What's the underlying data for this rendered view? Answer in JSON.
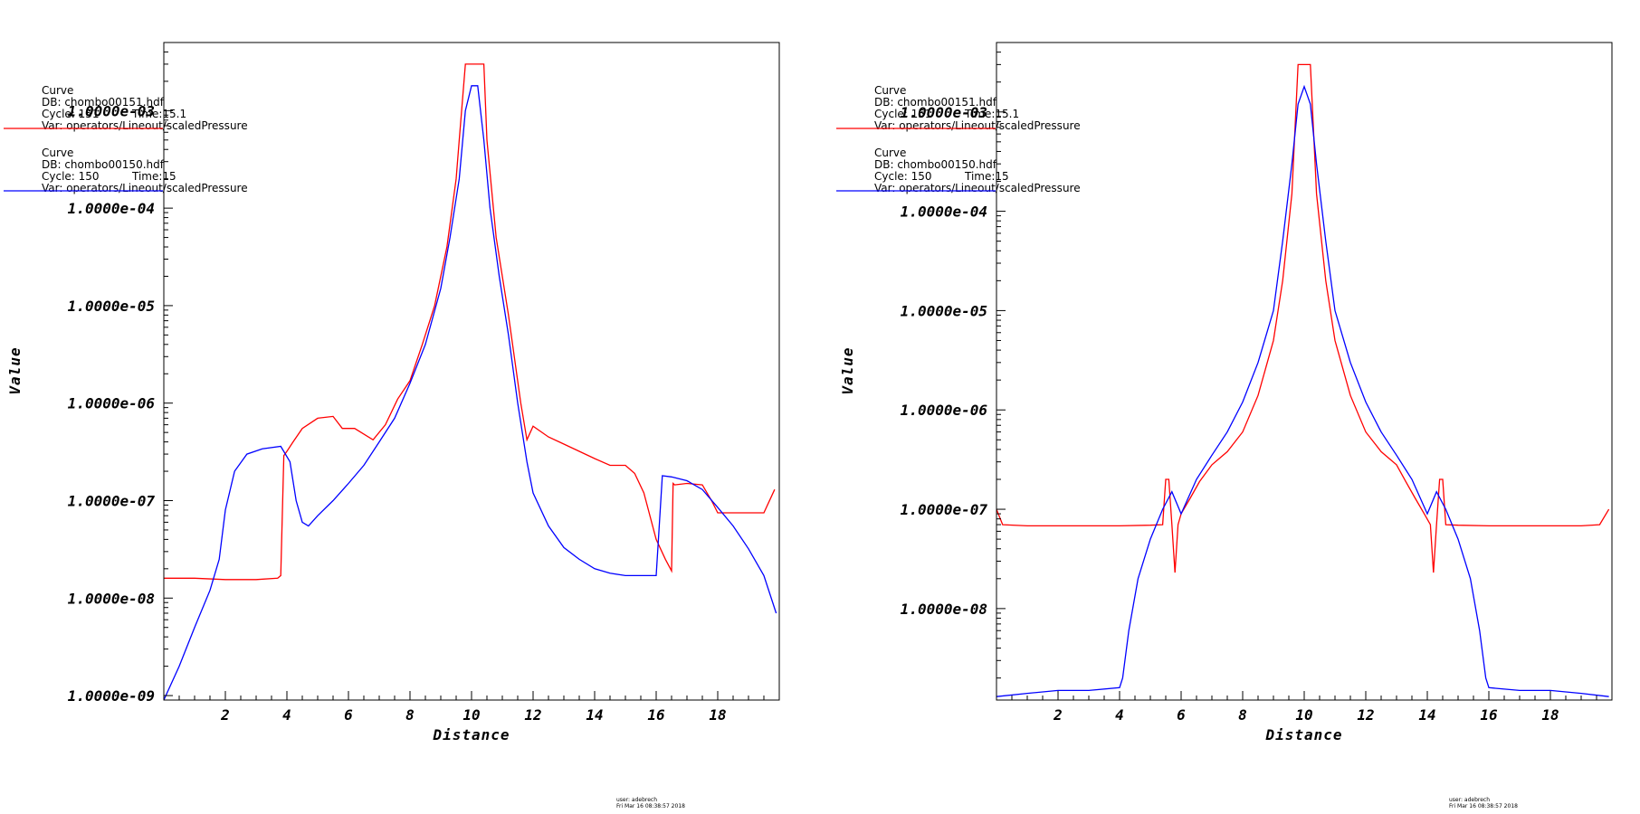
{
  "colors": {
    "red": "#ff0000",
    "blue": "#0000ff",
    "axis": "#000000",
    "background": "#ffffff"
  },
  "chart_data": [
    {
      "type": "line",
      "xlabel": "Distance",
      "ylabel": "Value",
      "yscale": "log",
      "xlim": [
        0,
        20
      ],
      "ylim": [
        9e-10,
        0.005
      ],
      "xticks": [
        {
          "value": 2,
          "label": "2"
        },
        {
          "value": 4,
          "label": "4"
        },
        {
          "value": 6,
          "label": "6"
        },
        {
          "value": 8,
          "label": "8"
        },
        {
          "value": 10,
          "label": "10"
        },
        {
          "value": 12,
          "label": "12"
        },
        {
          "value": 14,
          "label": "14"
        },
        {
          "value": 16,
          "label": "16"
        },
        {
          "value": 18,
          "label": "18"
        }
      ],
      "yticks": [
        {
          "value": 0.001,
          "label": "1.0000e-03"
        },
        {
          "value": 0.0001,
          "label": "1.0000e-04"
        },
        {
          "value": 1e-05,
          "label": "1.0000e-05"
        },
        {
          "value": 1e-06,
          "label": "1.0000e-06"
        },
        {
          "value": 1e-07,
          "label": "1.0000e-07"
        },
        {
          "value": 1e-08,
          "label": "1.0000e-08"
        },
        {
          "value": 1e-09,
          "label": "1.0000e-09"
        }
      ],
      "series": [
        {
          "name": "Curve",
          "db": "DB: chombo00151.hdf",
          "cycle": "Cycle: 151",
          "time": "Time:15.1",
          "var": "Var: operators/Lineout/scaledPressure",
          "color": "#ff0000",
          "x": [
            0,
            1,
            2,
            3,
            3.7,
            3.8,
            3.9,
            4.0,
            4.2,
            4.5,
            5.0,
            5.5,
            5.8,
            6.2,
            6.8,
            7.2,
            7.6,
            8.0,
            8.4,
            8.8,
            9.2,
            9.5,
            9.6,
            9.8,
            10.0,
            10.2,
            10.4,
            10.5,
            10.8,
            11.2,
            11.6,
            11.8,
            12.0,
            12.5,
            13.0,
            13.5,
            14.0,
            14.5,
            15.0,
            15.3,
            15.6,
            16.0,
            16.3,
            16.5,
            16.55,
            16.6,
            17.0,
            17.5,
            17.8,
            18.0,
            18.5,
            19.0,
            19.5,
            19.85
          ],
          "y": [
            1.6e-08,
            1.6e-08,
            1.55e-08,
            1.55e-08,
            1.6e-08,
            1.7e-08,
            2.9e-07,
            3.2e-07,
            4e-07,
            5.5e-07,
            7e-07,
            7.3e-07,
            5.5e-07,
            5.5e-07,
            4.2e-07,
            6e-07,
            1.1e-06,
            1.7e-06,
            4e-06,
            1e-05,
            4e-05,
            0.0002,
            0.0005,
            0.003,
            0.003,
            0.003,
            0.003,
            0.0005,
            5e-05,
            8e-06,
            1e-06,
            4.2e-07,
            5.8e-07,
            4.5e-07,
            3.8e-07,
            3.2e-07,
            2.7e-07,
            2.3e-07,
            2.3e-07,
            1.9e-07,
            1.2e-07,
            4e-08,
            2.5e-08,
            1.9e-08,
            1.5e-07,
            1.45e-07,
            1.5e-07,
            1.45e-07,
            1e-07,
            7.5e-08,
            7.5e-08,
            7.5e-08,
            7.5e-08,
            1.3e-07
          ]
        },
        {
          "name": "Curve",
          "db": "DB: chombo00150.hdf",
          "cycle": "Cycle: 150",
          "time": "Time:15",
          "var": "Var: operators/Lineout/scaledPressure",
          "color": "#0000ff",
          "x": [
            0,
            0.5,
            1.0,
            1.5,
            1.8,
            2.0,
            2.3,
            2.7,
            3.2,
            3.8,
            4.1,
            4.3,
            4.5,
            4.7,
            5.0,
            5.5,
            6.0,
            6.5,
            7.0,
            7.5,
            8.0,
            8.5,
            9.0,
            9.3,
            9.6,
            9.8,
            10.0,
            10.2,
            10.4,
            10.6,
            10.9,
            11.2,
            11.5,
            11.8,
            12.0,
            12.5,
            13.0,
            13.5,
            14.0,
            14.5,
            15.0,
            15.5,
            16.0,
            16.2,
            16.5,
            17.0,
            17.5,
            18.0,
            18.5,
            19.0,
            19.5,
            19.9
          ],
          "y": [
            9e-10,
            2e-09,
            5e-09,
            1.2e-08,
            2.5e-08,
            8e-08,
            2e-07,
            3e-07,
            3.4e-07,
            3.6e-07,
            2.5e-07,
            1e-07,
            6e-08,
            5.5e-08,
            7e-08,
            1e-07,
            1.5e-07,
            2.3e-07,
            4e-07,
            7e-07,
            1.6e-06,
            4e-06,
            1.5e-05,
            5e-05,
            0.0002,
            0.001,
            0.0018,
            0.0018,
            0.0005,
            0.0001,
            2e-05,
            5e-06,
            1e-06,
            2.5e-07,
            1.2e-07,
            5.5e-08,
            3.3e-08,
            2.5e-08,
            2e-08,
            1.8e-08,
            1.7e-08,
            1.7e-08,
            1.7e-08,
            1.8e-07,
            1.75e-07,
            1.6e-07,
            1.3e-07,
            8.5e-08,
            5.5e-08,
            3.2e-08,
            1.7e-08,
            7e-09
          ]
        }
      ]
    },
    {
      "type": "line",
      "xlabel": "Distance",
      "ylabel": "Value",
      "yscale": "log",
      "xlim": [
        0,
        20
      ],
      "ylim": [
        1.2e-09,
        0.005
      ],
      "xticks": [
        {
          "value": 2,
          "label": "2"
        },
        {
          "value": 4,
          "label": "4"
        },
        {
          "value": 6,
          "label": "6"
        },
        {
          "value": 8,
          "label": "8"
        },
        {
          "value": 10,
          "label": "10"
        },
        {
          "value": 12,
          "label": "12"
        },
        {
          "value": 14,
          "label": "14"
        },
        {
          "value": 16,
          "label": "16"
        },
        {
          "value": 18,
          "label": "18"
        }
      ],
      "yticks": [
        {
          "value": 0.001,
          "label": "1.0000e-03"
        },
        {
          "value": 0.0001,
          "label": "1.0000e-04"
        },
        {
          "value": 1e-05,
          "label": "1.0000e-05"
        },
        {
          "value": 1e-06,
          "label": "1.0000e-06"
        },
        {
          "value": 1e-07,
          "label": "1.0000e-07"
        },
        {
          "value": 1e-08,
          "label": "1.0000e-08"
        }
      ],
      "series": [
        {
          "name": "Curve",
          "db": "DB: chombo00151.hdf",
          "cycle": "Cycle: 151",
          "time": "Time:15.1",
          "var": "Var: operators/Lineout/scaledPressure",
          "color": "#ff0000",
          "x": [
            0,
            0.2,
            1,
            2,
            3,
            4,
            5,
            5.4,
            5.5,
            5.6,
            5.7,
            5.8,
            5.9,
            6.0,
            6.3,
            6.6,
            7.0,
            7.5,
            8.0,
            8.5,
            9.0,
            9.3,
            9.6,
            9.8,
            10.0,
            10.2,
            10.4,
            10.7,
            11.0,
            11.5,
            12.0,
            12.5,
            13.0,
            13.3,
            13.6,
            13.9,
            14.1,
            14.2,
            14.3,
            14.4,
            14.5,
            14.6,
            15.0,
            16.0,
            17.0,
            18.0,
            19.0,
            19.6,
            19.9
          ],
          "y": [
            1e-07,
            7e-08,
            6.8e-08,
            6.8e-08,
            6.8e-08,
            6.8e-08,
            6.9e-08,
            7e-08,
            2e-07,
            2e-07,
            7e-08,
            2.3e-08,
            7e-08,
            9e-08,
            1.3e-07,
            1.9e-07,
            2.8e-07,
            3.8e-07,
            6e-07,
            1.4e-06,
            5e-06,
            2e-05,
            0.00015,
            0.003,
            0.003,
            0.003,
            0.00015,
            2e-05,
            5e-06,
            1.4e-06,
            6e-07,
            3.8e-07,
            2.8e-07,
            1.9e-07,
            1.3e-07,
            9e-08,
            7e-08,
            2.3e-08,
            7e-08,
            2e-07,
            2e-07,
            7e-08,
            6.9e-08,
            6.8e-08,
            6.8e-08,
            6.8e-08,
            6.8e-08,
            7e-08,
            1e-07
          ]
        },
        {
          "name": "Curve",
          "db": "DB: chombo00150.hdf",
          "cycle": "Cycle: 150",
          "time": "Time:15",
          "var": "Var: operators/Lineout/scaledPressure",
          "color": "#0000ff",
          "x": [
            0,
            1,
            2,
            3,
            4.0,
            4.1,
            4.3,
            4.6,
            5.0,
            5.4,
            5.7,
            6.0,
            6.5,
            7.0,
            7.5,
            8.0,
            8.5,
            9.0,
            9.3,
            9.6,
            9.8,
            10.0,
            10.2,
            10.4,
            10.7,
            11.0,
            11.5,
            12.0,
            12.5,
            13.0,
            13.5,
            14.0,
            14.3,
            14.6,
            15.0,
            15.4,
            15.7,
            15.9,
            16.0,
            17,
            18,
            19,
            19.9
          ],
          "y": [
            1.3e-09,
            1.4e-09,
            1.5e-09,
            1.5e-09,
            1.6e-09,
            2e-09,
            6e-09,
            2e-08,
            5e-08,
            1e-07,
            1.5e-07,
            9e-08,
            2e-07,
            3.5e-07,
            6e-07,
            1.2e-06,
            3e-06,
            1e-05,
            5e-05,
            0.0003,
            0.0012,
            0.0018,
            0.0012,
            0.0003,
            5e-05,
            1e-05,
            3e-06,
            1.2e-06,
            6e-07,
            3.5e-07,
            2e-07,
            9e-08,
            1.5e-07,
            1e-07,
            5e-08,
            2e-08,
            6e-09,
            2e-09,
            1.6e-09,
            1.5e-09,
            1.5e-09,
            1.4e-09,
            1.3e-09
          ]
        }
      ]
    }
  ],
  "footer": {
    "user": "user: adebrech",
    "date": "Fri Mar 16 08:38:57 2018"
  }
}
